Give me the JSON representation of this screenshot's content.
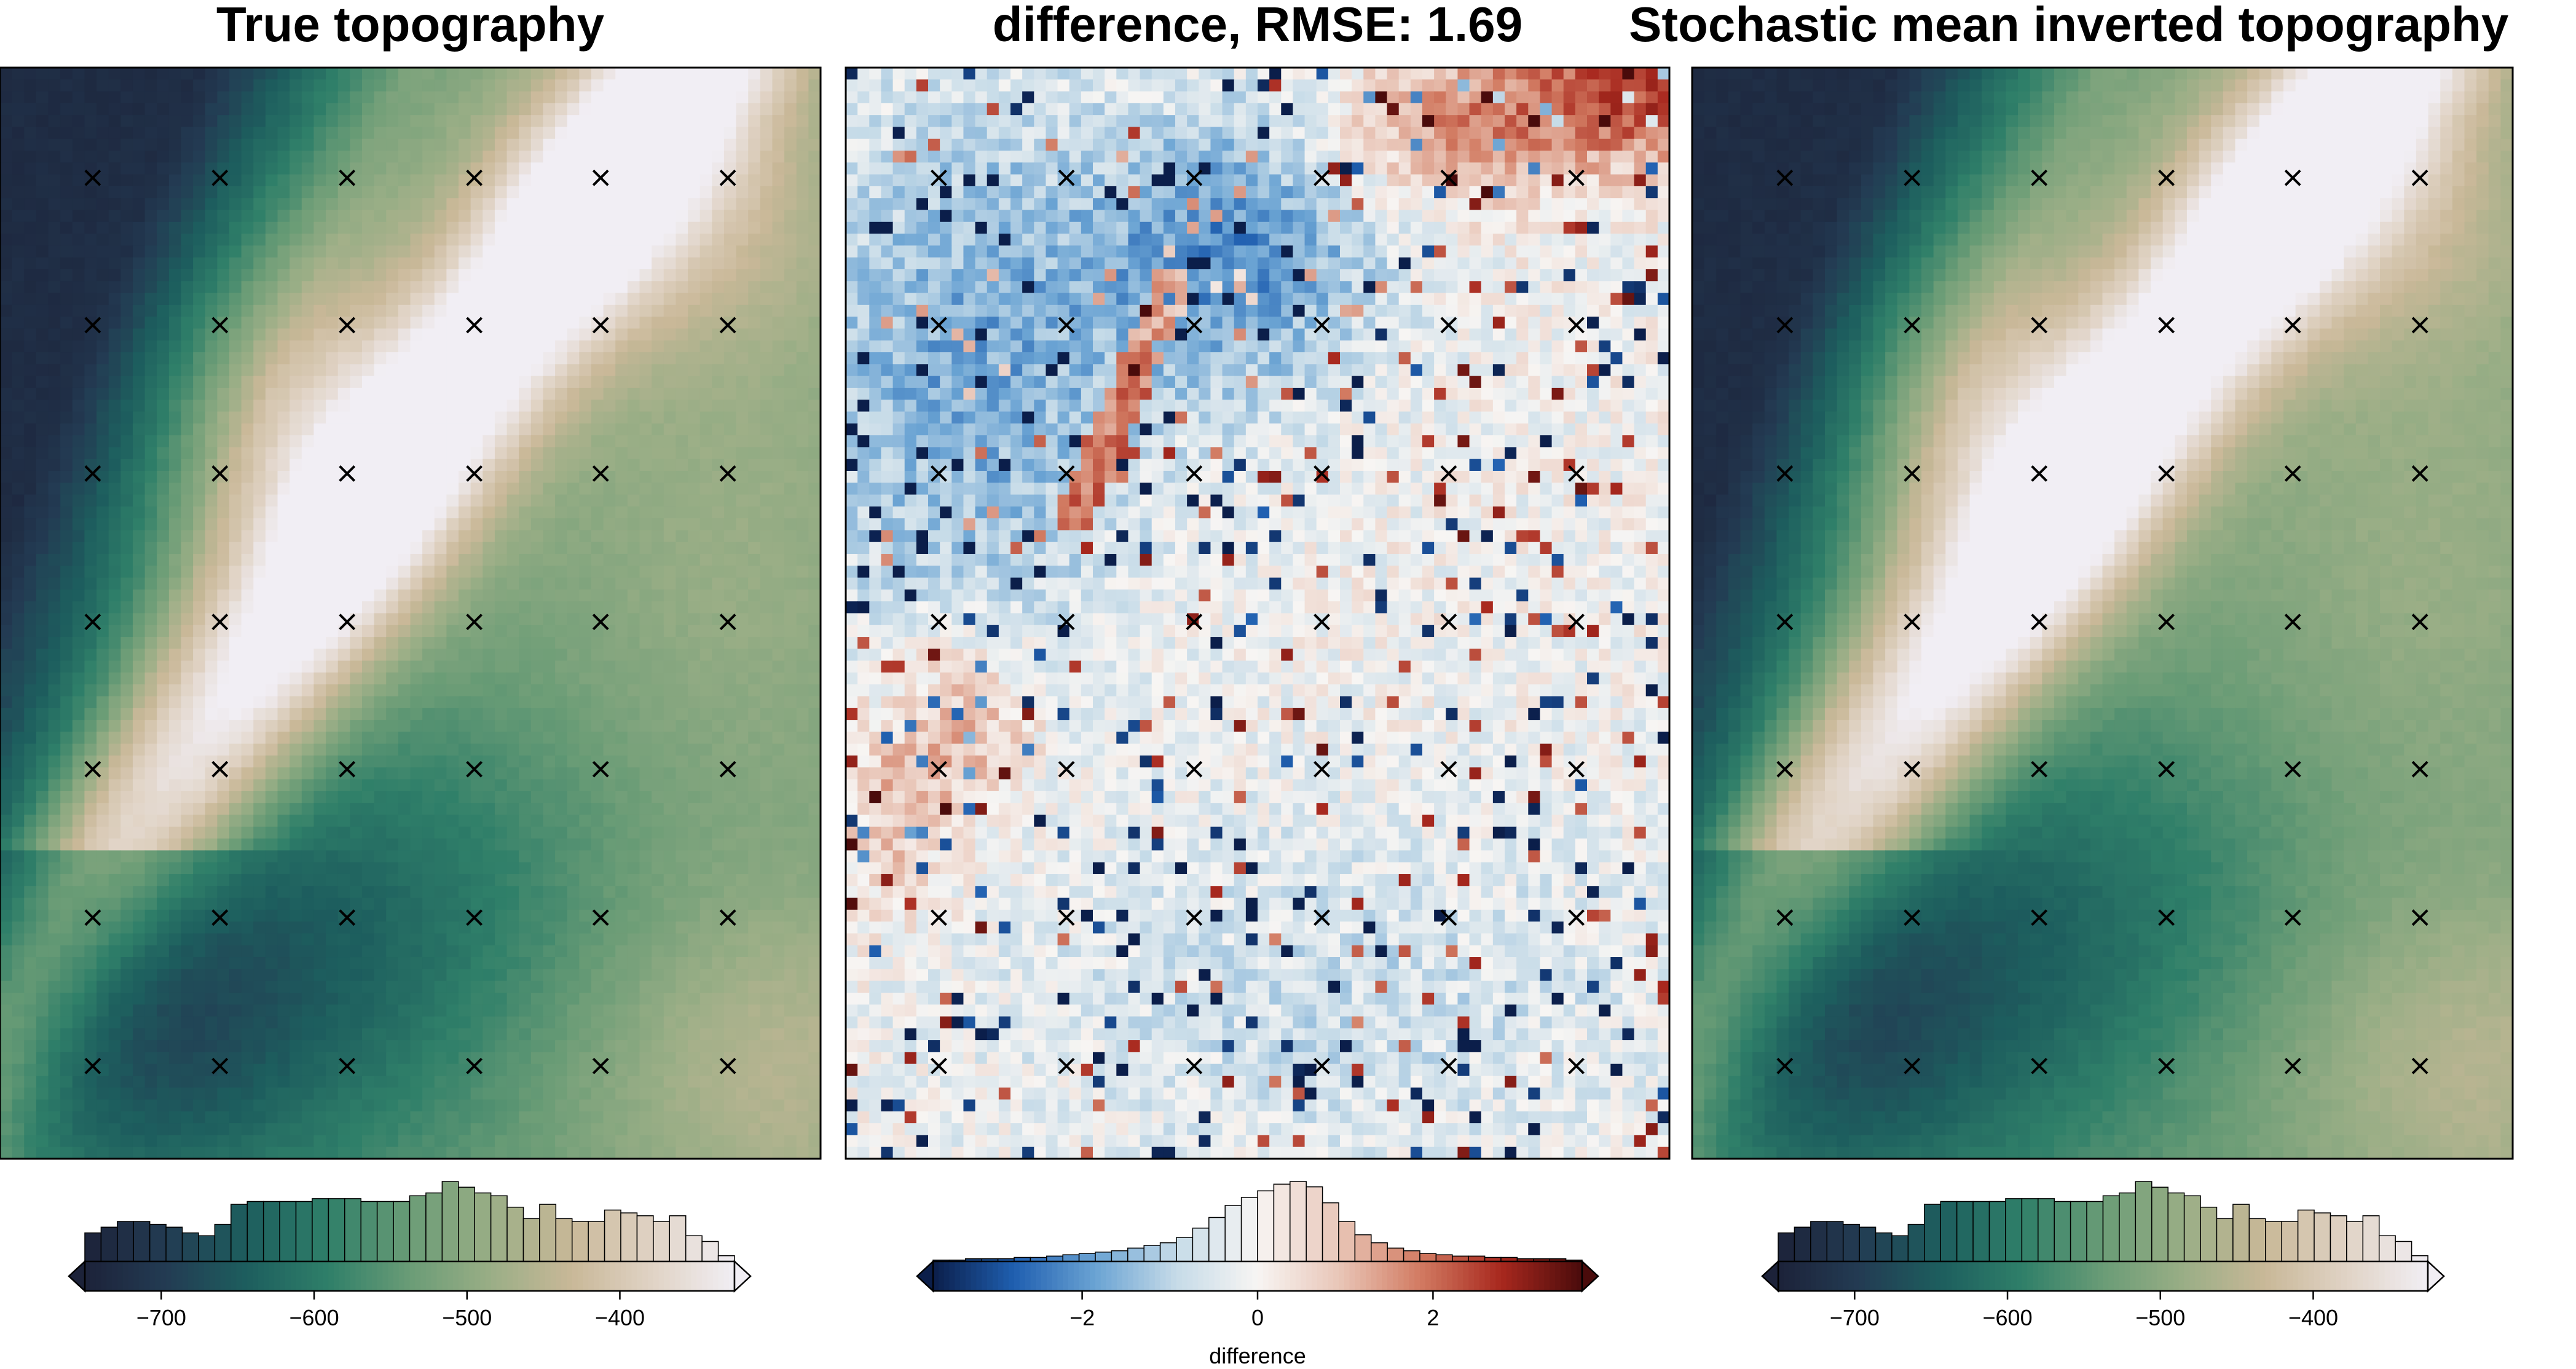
{
  "panels": {
    "true_title": "True topography",
    "diff_title": "difference, RMSE: 1.69",
    "inv_title": "Stochastic mean inverted topography"
  },
  "colors": {
    "topo_ramp": [
      "#1c2239",
      "#233b53",
      "#1d5e5e",
      "#2f7f69",
      "#6a9c76",
      "#9aae86",
      "#c9b898",
      "#e0d3c5",
      "#f1eef4"
    ],
    "diff_ramp": [
      "#0b1e4a",
      "#1f5fb0",
      "#6aa3d3",
      "#c6dbe8",
      "#f7f5f3",
      "#e9c6b8",
      "#d27b62",
      "#a8281e",
      "#4a0b0b"
    ],
    "marker": "#000000"
  },
  "chart_data": [
    {
      "type": "heatmap",
      "name": "true_topography",
      "title": "True topography",
      "markers": {
        "symbol": "x",
        "columns": 6,
        "rows": 7,
        "count": 42
      },
      "colorbar": {
        "label": "",
        "range": [
          -750,
          -325
        ],
        "ticks": [
          -700,
          -600,
          -500,
          -400
        ],
        "tick_labels": [
          "−700",
          "−600",
          "−500",
          "−400"
        ],
        "extend": "both",
        "histogram": [
          10,
          12,
          14,
          14,
          13,
          12,
          10,
          9,
          13,
          20,
          21,
          21,
          21,
          21,
          22,
          22,
          22,
          21,
          21,
          21,
          23,
          24,
          28,
          26,
          24,
          23,
          19,
          15,
          20,
          15,
          14,
          14,
          18,
          17,
          16,
          14,
          16,
          9,
          7,
          2
        ]
      }
    },
    {
      "type": "heatmap",
      "name": "difference",
      "title": "difference, RMSE: 1.69",
      "rmse": 1.69,
      "markers": {
        "symbol": "x",
        "columns": 6,
        "rows": 7,
        "count": 42
      },
      "colorbar": {
        "label": "difference",
        "range": [
          -3.7,
          3.7
        ],
        "ticks": [
          -2,
          0,
          2
        ],
        "tick_labels": [
          "−2",
          "0",
          "2"
        ],
        "extend": "both",
        "histogram": [
          1,
          1,
          2,
          2,
          2,
          3,
          3,
          4,
          5,
          6,
          7,
          8,
          10,
          12,
          14,
          18,
          25,
          33,
          42,
          48,
          53,
          58,
          60,
          56,
          44,
          30,
          20,
          14,
          10,
          8,
          6,
          5,
          4,
          4,
          3,
          3,
          2,
          2,
          2,
          1
        ]
      }
    },
    {
      "type": "heatmap",
      "name": "stochastic_mean_inverted_topography",
      "title": "Stochastic mean inverted topography",
      "markers": {
        "symbol": "x",
        "columns": 6,
        "rows": 7,
        "count": 42
      },
      "colorbar": {
        "label": "",
        "range": [
          -750,
          -325
        ],
        "ticks": [
          -700,
          -600,
          -500,
          -400
        ],
        "tick_labels": [
          "−700",
          "−600",
          "−500",
          "−400"
        ],
        "extend": "both",
        "histogram": [
          10,
          12,
          14,
          14,
          13,
          12,
          10,
          9,
          13,
          20,
          21,
          21,
          21,
          21,
          22,
          22,
          22,
          21,
          21,
          21,
          23,
          24,
          28,
          26,
          24,
          23,
          19,
          15,
          20,
          15,
          14,
          14,
          18,
          17,
          16,
          14,
          16,
          9,
          7,
          2
        ]
      }
    }
  ]
}
